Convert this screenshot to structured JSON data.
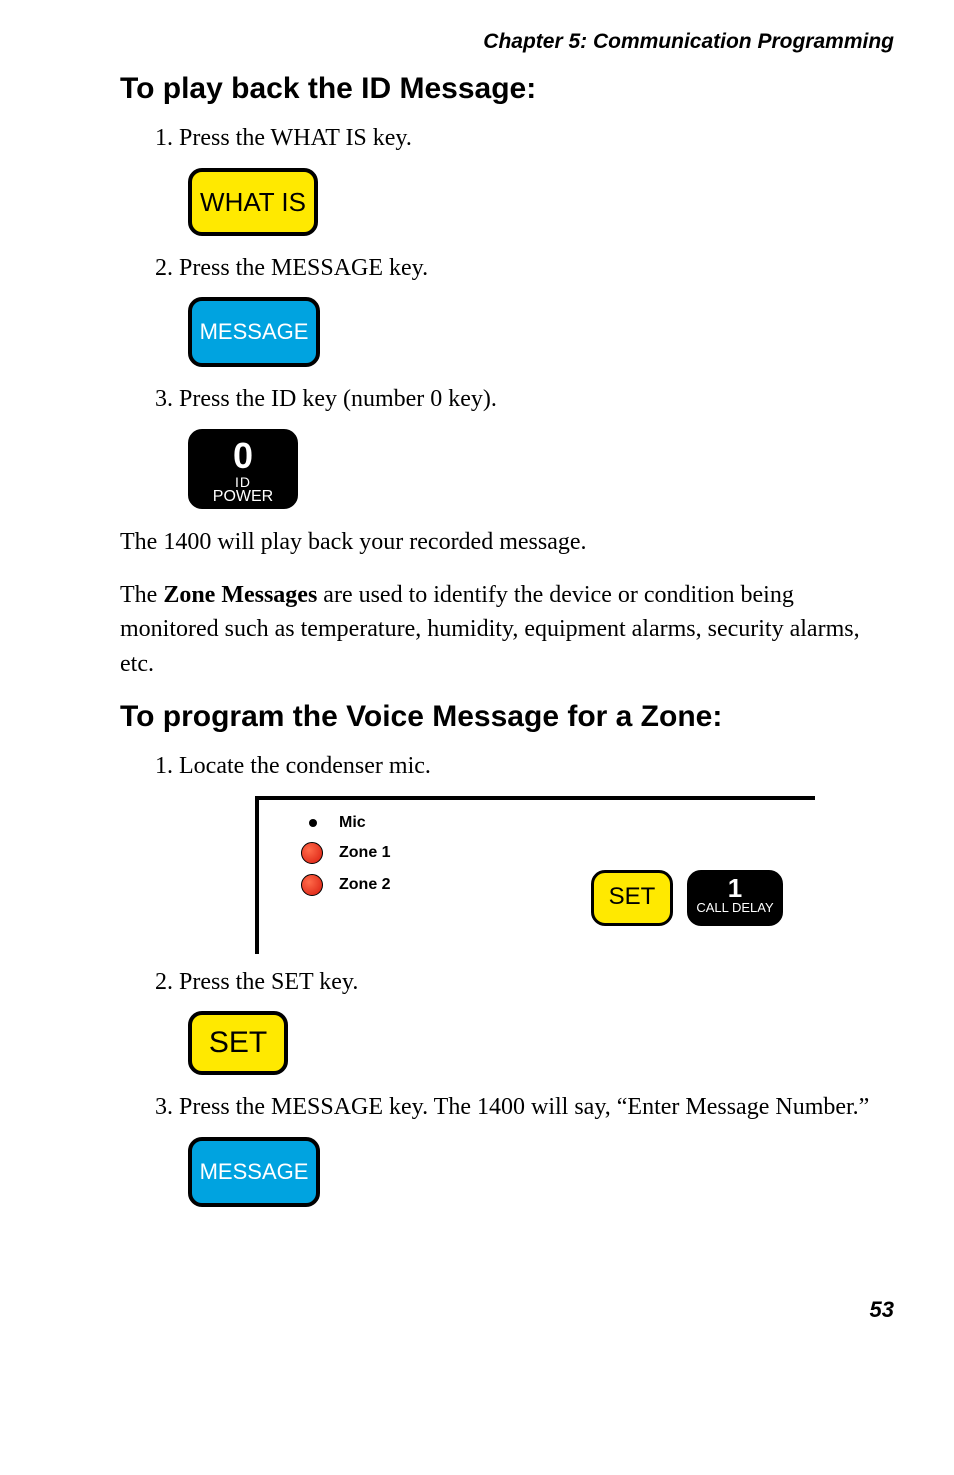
{
  "chapter": "Chapter 5: Communication Programming",
  "playback": {
    "heading": "To play back the ID Message:",
    "step1": "1. Press the WHAT IS key.",
    "step2": "2. Press the MESSAGE key.",
    "step3": "3. Press the ID key (number 0 key)."
  },
  "keys": {
    "whatis": "WHAT IS",
    "message": "MESSAGE",
    "zero": {
      "num": "0",
      "id": "ID",
      "power": "POWER"
    },
    "set": "SET",
    "calldelay": {
      "num": "1",
      "label": "CALL DELAY"
    }
  },
  "body1": "The 1400 will play back your recorded message.",
  "body2_prefix": "The ",
  "body2_bold": "Zone Messages",
  "body2_rest": " are used to identify the device or condition being monitored such as temperature, humidity, equipment alarms, security alarms, etc.",
  "voice": {
    "heading": "To program the Voice Message for a Zone:",
    "step1": "1. Locate the condenser mic.",
    "step2": "2. Press the SET key.",
    "step3": "3. Press the MESSAGE key. The 1400 will say, “Enter Message Number.”"
  },
  "panel": {
    "mic": "Mic",
    "zone1": "Zone 1",
    "zone2": "Zone 2"
  },
  "page": "53",
  "colors": {
    "yellow": "#ffe900",
    "blue": "#00a3e0",
    "red": "#d81b0e"
  }
}
